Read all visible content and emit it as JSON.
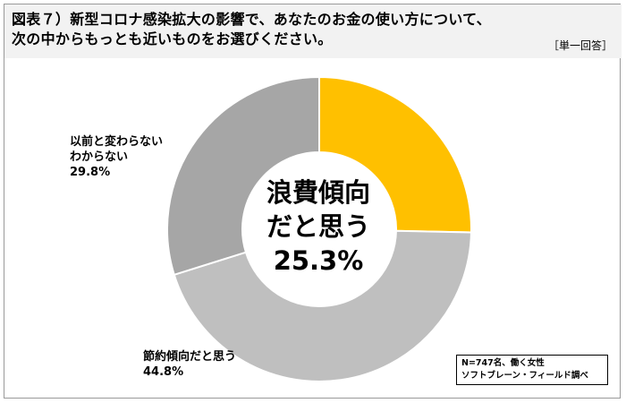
{
  "title_lines": [
    "図表７）新型コロナ感染拡大の影響で、あなたのお金の使い方について、",
    "次の中からもっとも近いものをお選びください。"
  ],
  "answer_type": "［単一回答］",
  "chart_data": {
    "type": "pie",
    "style": "donut",
    "slices": [
      {
        "label": "浪費傾向だと思う",
        "value": 25.3,
        "value_label": "25.3%",
        "color": "#FFC000"
      },
      {
        "label": "節約傾向だと思う",
        "value": 44.8,
        "value_label": "44.8%",
        "color": "#BFBFBF"
      },
      {
        "label": "以前と変わらない\nわからない",
        "value": 29.8,
        "value_label": "29.8%",
        "color": "#A6A6A6"
      }
    ],
    "center_label": {
      "line1": "浪費傾向",
      "line2": "だと思う",
      "value": "25.3%"
    },
    "slice_labels": {
      "saving": {
        "line1": "節約傾向だと思う",
        "value": "44.8%"
      },
      "unchanged": {
        "line1": "以前と変わらない",
        "line2": "わからない",
        "value": "29.8%"
      }
    },
    "slice_border_color": "#FFFFFF"
  },
  "note": {
    "line1": "N=747名、働く女性",
    "line2": "ソフトブレーン・フィールド調べ"
  }
}
